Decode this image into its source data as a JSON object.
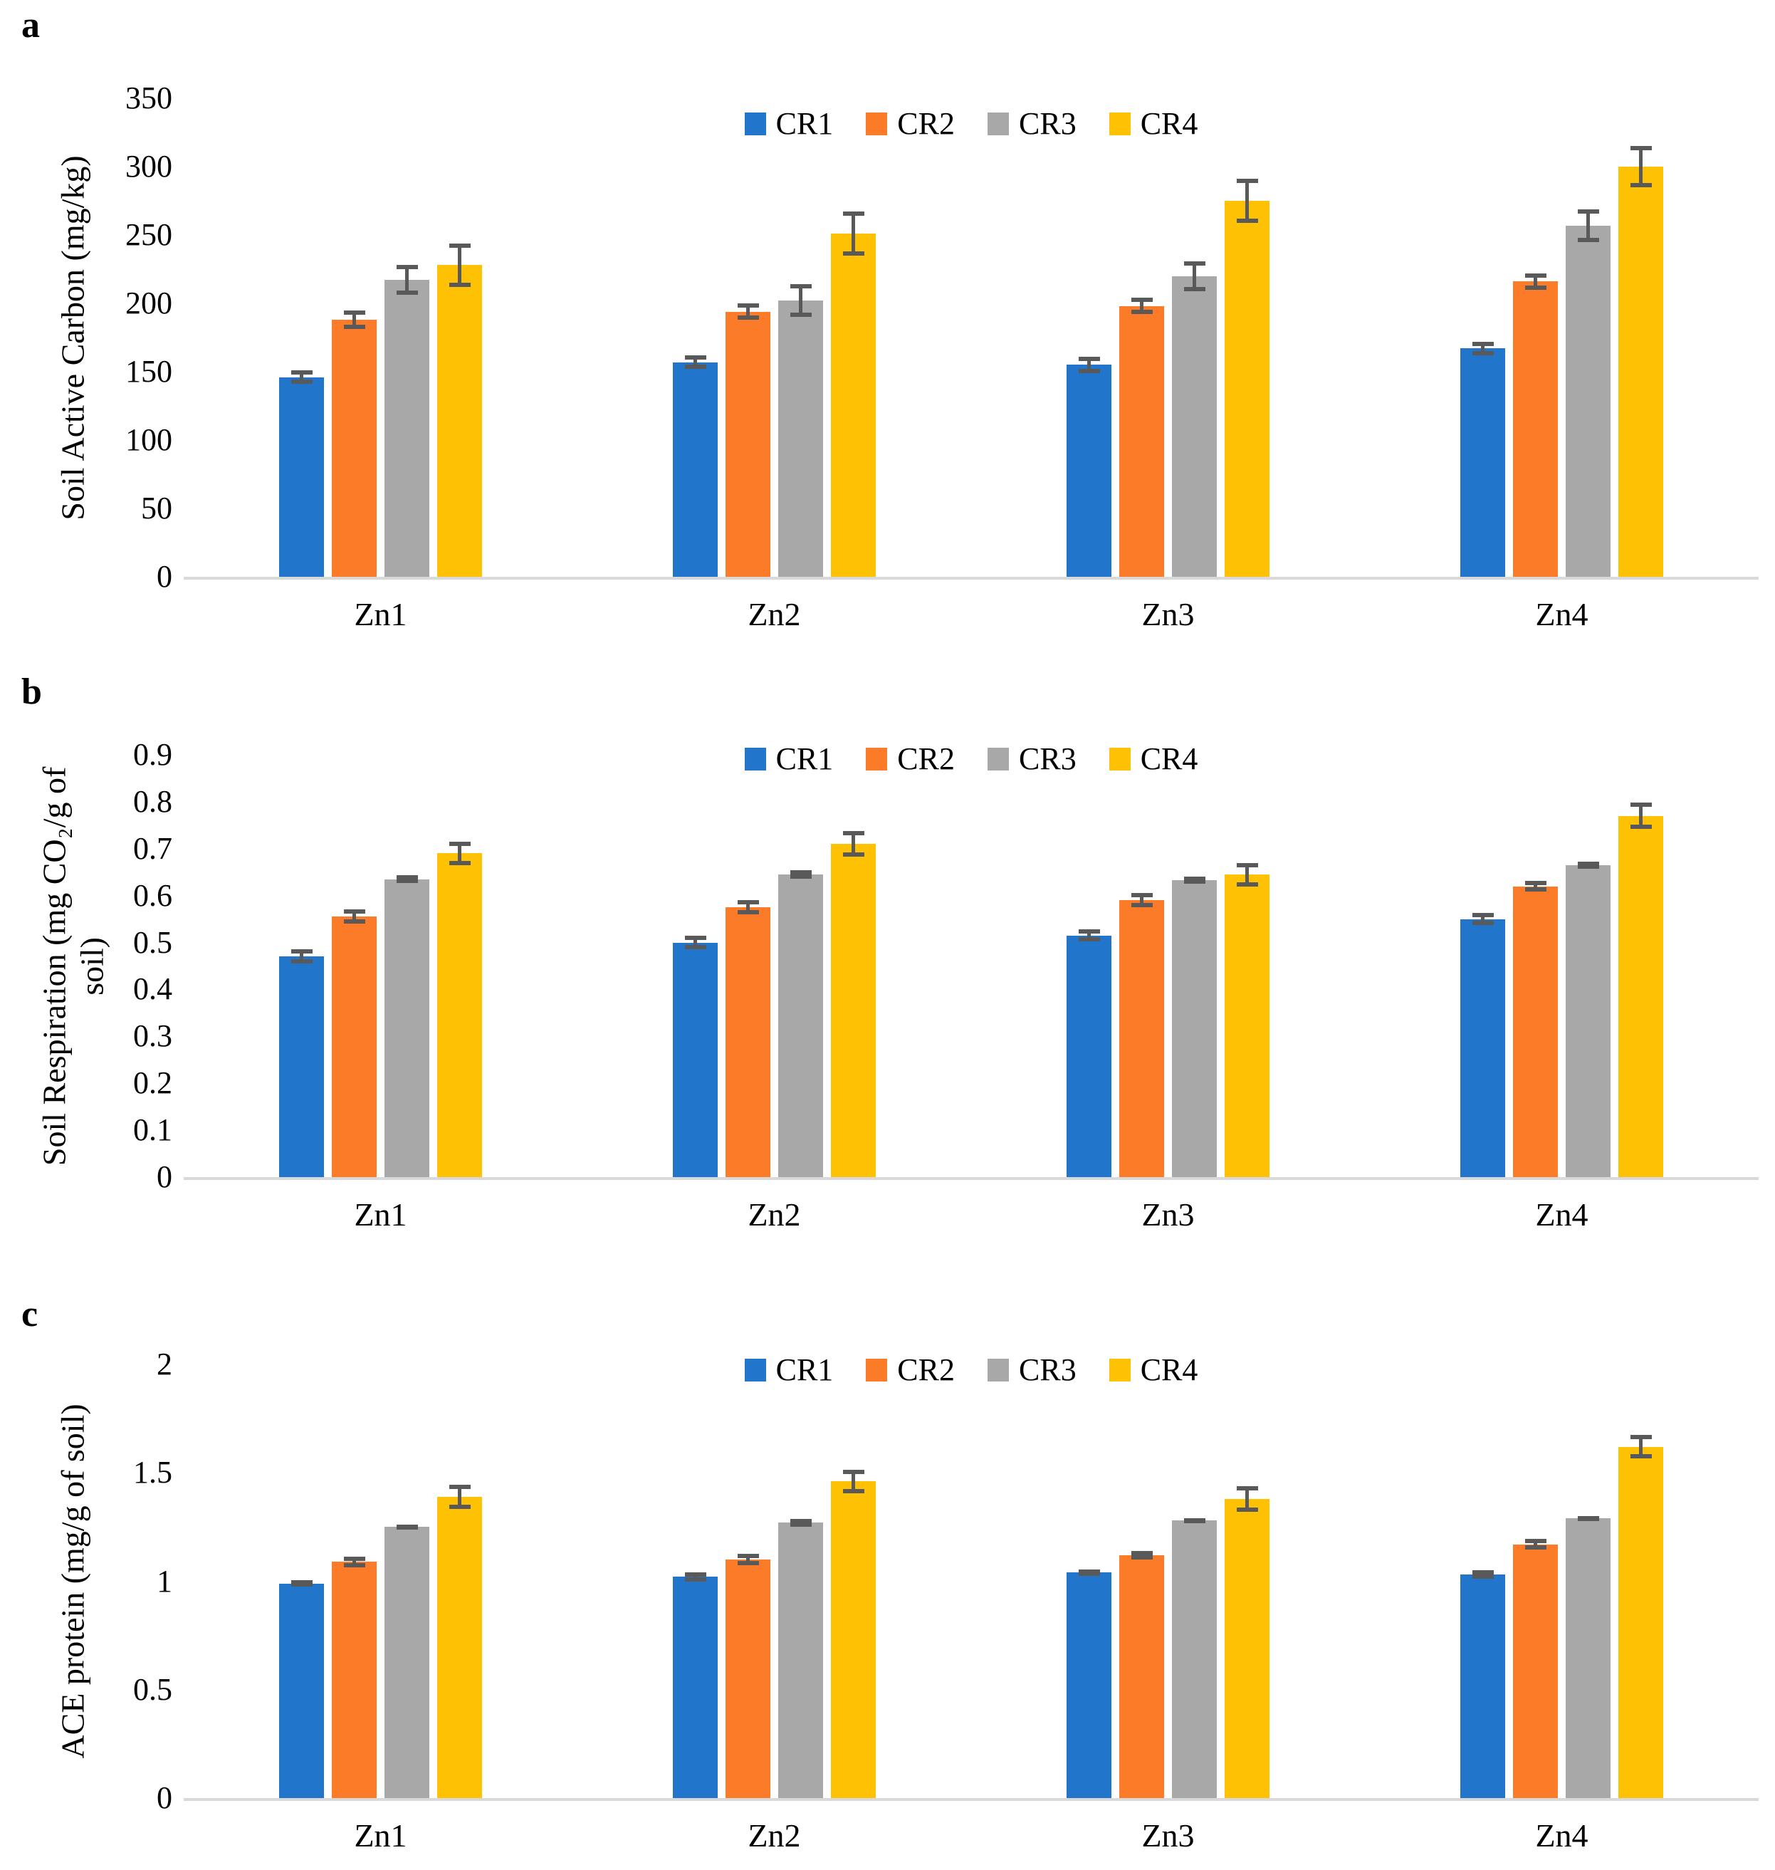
{
  "figure": {
    "background": "#ffffff",
    "text_color": "#000000",
    "axis_line_color": "#d9d9d9",
    "error_bar_color": "#595959"
  },
  "legend": {
    "position": "top-center",
    "items": [
      {
        "label": "CR1",
        "color": "#2176CC"
      },
      {
        "label": "CR2",
        "color": "#FB7B28"
      },
      {
        "label": "CR3",
        "color": "#A8A8A8"
      },
      {
        "label": "CR4",
        "color": "#FFC103"
      }
    ]
  },
  "chart_data": [
    {
      "type": "bar",
      "panel_letter": "a",
      "title": "",
      "xlabel": "",
      "ylabel": "Soil Active Carbon (mg/kg)",
      "ylabel_lines": [
        "Soil Active Carbon (mg/kg)"
      ],
      "categories": [
        "Zn1",
        "Zn2",
        "Zn3",
        "Zn4"
      ],
      "ylim": [
        0,
        350
      ],
      "yticks": [
        "350",
        "300",
        "250",
        "200",
        "150",
        "100",
        "50",
        "0"
      ],
      "grid": false,
      "legend_position": "top-center",
      "series": [
        {
          "name": "CR1",
          "color": "#2176CC",
          "values": [
            146,
            157,
            155,
            167
          ],
          "errors": [
            5,
            5,
            6,
            5
          ]
        },
        {
          "name": "CR2",
          "color": "#FB7B28",
          "values": [
            188,
            194,
            198,
            216
          ],
          "errors": [
            7,
            6,
            6,
            6
          ]
        },
        {
          "name": "CR3",
          "color": "#A8A8A8",
          "values": [
            217,
            202,
            220,
            257
          ],
          "errors": [
            11,
            12,
            11,
            12
          ]
        },
        {
          "name": "CR4",
          "color": "#FFC103",
          "values": [
            228,
            251,
            275,
            300
          ],
          "errors": [
            16,
            16,
            16,
            15
          ]
        }
      ]
    },
    {
      "type": "bar",
      "panel_letter": "b",
      "title": "",
      "xlabel": "",
      "ylabel": "Soil Respiration (mg CO2/g of soil)",
      "ylabel_lines": [
        "Soil Respiration (mg CO₂/g of",
        "soil)"
      ],
      "categories": [
        "Zn1",
        "Zn2",
        "Zn3",
        "Zn4"
      ],
      "ylim": [
        0,
        0.9
      ],
      "yticks": [
        "0.9",
        "0.8",
        "0.7",
        "0.6",
        "0.5",
        "0.4",
        "0.3",
        "0.2",
        "0.1",
        "0"
      ],
      "grid": false,
      "legend_position": "top-center",
      "series": [
        {
          "name": "CR1",
          "color": "#2176CC",
          "values": [
            0.47,
            0.5,
            0.515,
            0.55
          ],
          "errors": [
            0.015,
            0.015,
            0.013,
            0.013
          ]
        },
        {
          "name": "CR2",
          "color": "#FB7B28",
          "values": [
            0.555,
            0.575,
            0.59,
            0.62
          ],
          "errors": [
            0.015,
            0.015,
            0.015,
            0.012
          ]
        },
        {
          "name": "CR3",
          "color": "#A8A8A8",
          "values": [
            0.635,
            0.645,
            0.633,
            0.665
          ],
          "errors": [
            0.008,
            0.009,
            0.008,
            0.008
          ]
        },
        {
          "name": "CR4",
          "color": "#FFC103",
          "values": [
            0.69,
            0.71,
            0.645,
            0.77
          ],
          "errors": [
            0.025,
            0.027,
            0.025,
            0.028
          ]
        }
      ]
    },
    {
      "type": "bar",
      "panel_letter": "c",
      "title": "",
      "xlabel": "",
      "ylabel": "ACE protein (mg/g of soil)",
      "ylabel_lines": [
        "ACE protein (mg/g of soil)"
      ],
      "categories": [
        "Zn1",
        "Zn2",
        "Zn3",
        "Zn4"
      ],
      "ylim": [
        0,
        2
      ],
      "yticks": [
        "2",
        "1.5",
        "1",
        "0.5",
        "0"
      ],
      "grid": false,
      "legend_position": "top-center",
      "series": [
        {
          "name": "CR1",
          "color": "#2176CC",
          "values": [
            0.99,
            1.02,
            1.04,
            1.03
          ],
          "errors": [
            0.015,
            0.02,
            0.015,
            0.02
          ]
        },
        {
          "name": "CR2",
          "color": "#FB7B28",
          "values": [
            1.09,
            1.1,
            1.12,
            1.17
          ],
          "errors": [
            0.025,
            0.025,
            0.02,
            0.025
          ]
        },
        {
          "name": "CR3",
          "color": "#A8A8A8",
          "values": [
            1.25,
            1.27,
            1.28,
            1.29
          ],
          "errors": [
            0.012,
            0.018,
            0.012,
            0.012
          ]
        },
        {
          "name": "CR4",
          "color": "#FFC103",
          "values": [
            1.39,
            1.46,
            1.38,
            1.62
          ],
          "errors": [
            0.055,
            0.055,
            0.06,
            0.055
          ]
        }
      ]
    }
  ]
}
